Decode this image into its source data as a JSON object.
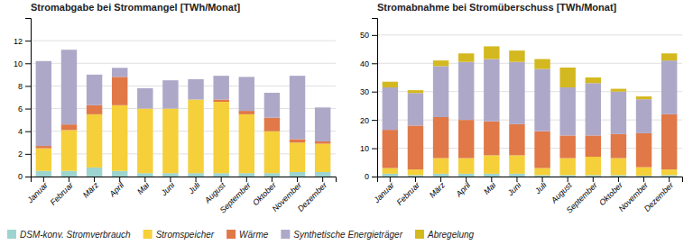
{
  "chart_data": [
    {
      "type": "bar",
      "stacked": true,
      "grid": true,
      "legend": "lower left",
      "title": "Stromabgabe bei Strommangel [TWh/Monat]",
      "categories": [
        "Januar",
        "Februar",
        "März",
        "April",
        "Mai",
        "Juni",
        "Juli",
        "August",
        "September",
        "Oktober",
        "November",
        "Dezember"
      ],
      "ylim": [
        0,
        14
      ],
      "yticks": [
        0,
        2,
        4,
        6,
        8,
        10,
        12
      ],
      "series": [
        {
          "name": "DSM-konv. Stromverbrauch",
          "color": "#9ed4cf",
          "values": [
            0.5,
            0.5,
            0.8,
            0.5,
            0.3,
            0.3,
            0.3,
            0.3,
            0.3,
            0.3,
            0.4,
            0.4
          ]
        },
        {
          "name": "Stromspeicher",
          "color": "#f5d03b",
          "values": [
            2.0,
            3.6,
            4.7,
            5.8,
            5.7,
            5.7,
            6.5,
            6.3,
            5.2,
            3.7,
            2.6,
            2.5
          ]
        },
        {
          "name": "Wärme",
          "color": "#e07848",
          "values": [
            0.2,
            0.5,
            0.8,
            2.5,
            0.0,
            0.0,
            0.0,
            0.2,
            0.3,
            1.2,
            0.3,
            0.2
          ]
        },
        {
          "name": "Synthetische Energieträger",
          "color": "#aea8c8",
          "values": [
            7.5,
            6.6,
            2.7,
            0.8,
            1.8,
            2.5,
            1.8,
            2.1,
            3.0,
            2.2,
            5.6,
            3.0
          ]
        }
      ]
    },
    {
      "type": "bar",
      "stacked": true,
      "grid": true,
      "legend": "lower left",
      "title": "Stromabnahme bei Stromüberschuss [TWh/Monat]",
      "categories": [
        "Januar",
        "Februar",
        "März",
        "April",
        "Mai",
        "Juni",
        "Juli",
        "August",
        "September",
        "Oktober",
        "November",
        "Dezember"
      ],
      "ylim": [
        0,
        56
      ],
      "yticks": [
        0,
        10,
        20,
        30,
        40,
        50
      ],
      "series": [
        {
          "name": "DSM-konv. Stromverbrauch",
          "color": "#9ed4cf",
          "values": [
            1.0,
            0.5,
            1.0,
            1.0,
            1.0,
            1.0,
            0.5,
            0.5,
            0.5,
            0.5,
            0.3,
            0.5
          ]
        },
        {
          "name": "Stromspeicher",
          "color": "#f5d03b",
          "values": [
            2.0,
            2.0,
            5.5,
            5.5,
            6.5,
            6.5,
            2.5,
            6.0,
            6.5,
            6.0,
            3.0,
            2.0
          ]
        },
        {
          "name": "Wärme",
          "color": "#e07848",
          "values": [
            13.5,
            15.5,
            14.5,
            13.5,
            12.0,
            11.0,
            13.0,
            8.0,
            7.5,
            8.5,
            12.0,
            19.5
          ]
        },
        {
          "name": "Synthetische Energieträger",
          "color": "#aea8c8",
          "values": [
            15.0,
            11.5,
            18.0,
            20.5,
            22.0,
            22.0,
            22.0,
            17.0,
            18.5,
            15.0,
            12.0,
            19.0
          ]
        },
        {
          "name": "Abregelung",
          "color": "#d4b820",
          "values": [
            2.0,
            1.0,
            2.0,
            3.0,
            4.5,
            4.0,
            3.5,
            7.0,
            2.0,
            1.0,
            1.0,
            2.5
          ]
        }
      ]
    }
  ]
}
